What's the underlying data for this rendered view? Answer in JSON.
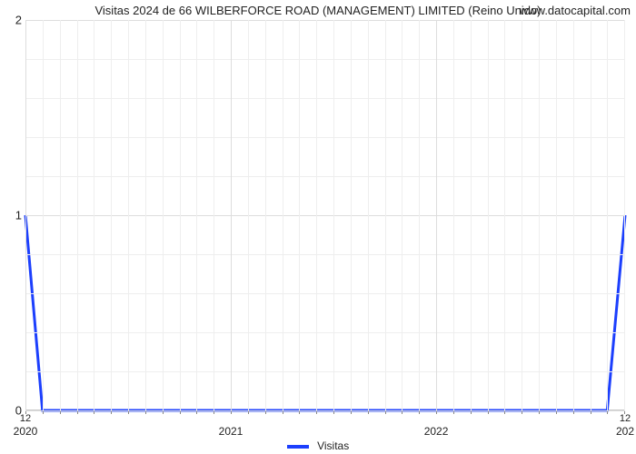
{
  "title": "Visitas 2024 de 66 WILBERFORCE ROAD (MANAGEMENT) LIMITED (Reino Unido)",
  "watermark": "www.datocapital.com",
  "chart": {
    "type": "line",
    "background_color": "#ffffff",
    "grid_color": "#dddddd",
    "border_color": "#c9c9c9",
    "text_color": "#222222",
    "ylim": [
      0,
      2
    ],
    "yticks": [
      0,
      1,
      2
    ],
    "minor_y_segments": 5,
    "xlim": [
      2020.0,
      2022.92
    ],
    "xticks_major": [
      2020,
      2021,
      2022
    ],
    "xticks_minor_per_year": 12,
    "series": {
      "name": "Visitas",
      "color": "#1C3FFD",
      "line_width": 3,
      "points": [
        {
          "x": 2020.0,
          "y": 1.0
        },
        {
          "x": 2020.083,
          "y": 0.0
        },
        {
          "x": 2022.833,
          "y": 0.0
        },
        {
          "x": 2022.92,
          "y": 1.0
        }
      ]
    },
    "first_minor_label": "12",
    "last_minor_label": "12"
  },
  "legend": {
    "label": "Visitas"
  }
}
